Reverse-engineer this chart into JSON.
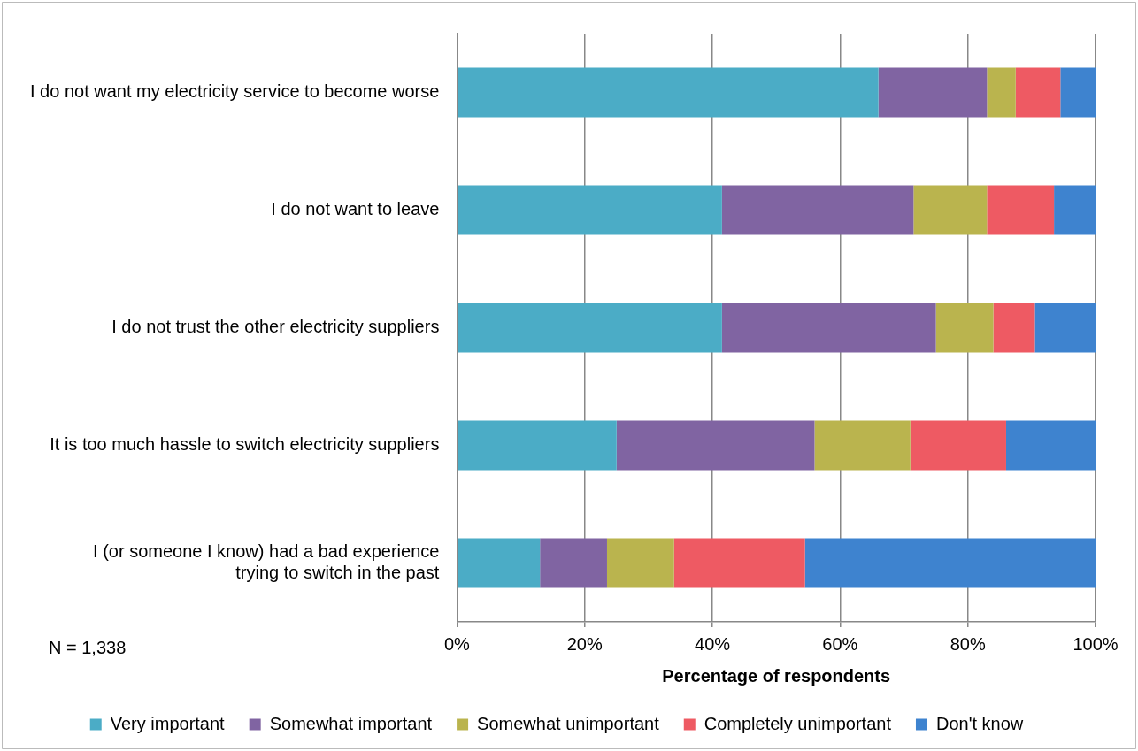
{
  "chart_data": {
    "type": "bar",
    "orientation": "horizontal",
    "stacked": true,
    "categories": [
      "I do not want my electricity service to become worse",
      "I do not want to leave",
      "I do not trust the other electricity suppliers",
      "It is too much hassle to switch electricity suppliers",
      "I (or someone I know) had a bad experience trying to switch in the past"
    ],
    "series": [
      {
        "name": "Very important",
        "color": "#4bacc6",
        "values": [
          66,
          41.5,
          41.5,
          25,
          13
        ]
      },
      {
        "name": "Somewhat important",
        "color": "#8064a2",
        "values": [
          17,
          30,
          33.5,
          31,
          10.5
        ]
      },
      {
        "name": "Somewhat unimportant",
        "color": "#bab44e",
        "values": [
          4.5,
          11.5,
          9,
          15,
          10.5
        ]
      },
      {
        "name": "Completely unimportant",
        "color": "#ee5a63",
        "values": [
          7,
          10.5,
          6.5,
          15,
          20.5
        ]
      },
      {
        "name": "Don't know",
        "color": "#3e83cf",
        "values": [
          5.5,
          6.5,
          9.5,
          14,
          45.5
        ]
      }
    ],
    "xlabel": "Percentage of respondents",
    "xlim": [
      0,
      100
    ],
    "xticks": [
      {
        "value": 0,
        "label": "0%"
      },
      {
        "value": 20,
        "label": "20%"
      },
      {
        "value": 40,
        "label": "40%"
      },
      {
        "value": 60,
        "label": "60%"
      },
      {
        "value": 80,
        "label": "80%"
      },
      {
        "value": 100,
        "label": "100%"
      }
    ],
    "grid": "x",
    "legend": "bottom",
    "annotations": [
      "N = 1,338"
    ]
  }
}
